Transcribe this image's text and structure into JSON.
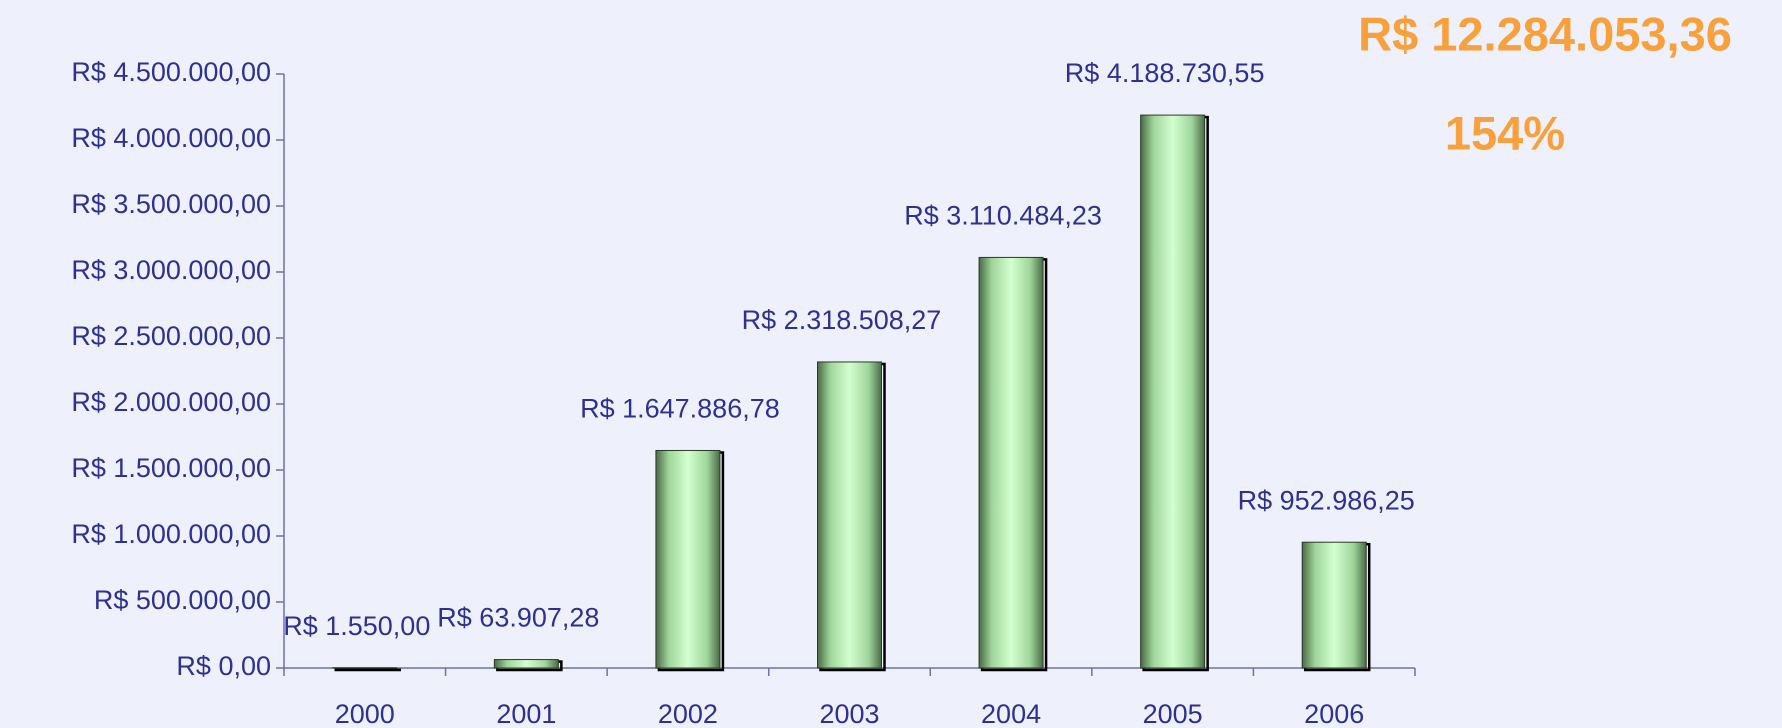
{
  "chart_data": {
    "type": "bar",
    "categories": [
      "2000",
      "2001",
      "2002",
      "2003",
      "2004",
      "2005",
      "2006"
    ],
    "values": [
      1550.0,
      63907.28,
      1647886.78,
      2318508.27,
      3110484.23,
      4188730.55,
      952986.25
    ],
    "value_labels": [
      "R$ 1.550,00",
      "R$ 63.907,28",
      "R$ 1.647.886,78",
      "R$ 2.318.508,27",
      "R$ 3.110.484,23",
      "R$ 4.188.730,55",
      "R$ 952.986,25"
    ],
    "color": "#c8f5c4",
    "ylim": [
      0,
      4500000
    ],
    "yticks": [
      {
        "value": 0,
        "label": "R$ 0,00"
      },
      {
        "value": 500000,
        "label": "R$ 500.000,00"
      },
      {
        "value": 1000000,
        "label": "R$ 1.000.000,00"
      },
      {
        "value": 1500000,
        "label": "R$ 1.500.000,00"
      },
      {
        "value": 2000000,
        "label": "R$ 2.000.000,00"
      },
      {
        "value": 2500000,
        "label": "R$ 2.500.000,00"
      },
      {
        "value": 3000000,
        "label": "R$ 3.000.000,00"
      },
      {
        "value": 3500000,
        "label": "R$ 3.500.000,00"
      },
      {
        "value": 4000000,
        "label": "R$ 4.000.000,00"
      },
      {
        "value": 4500000,
        "label": "R$ 4.500.000,00"
      }
    ],
    "grid": false,
    "annotations": [
      "R$ 12.284.053,36",
      "154%"
    ]
  }
}
